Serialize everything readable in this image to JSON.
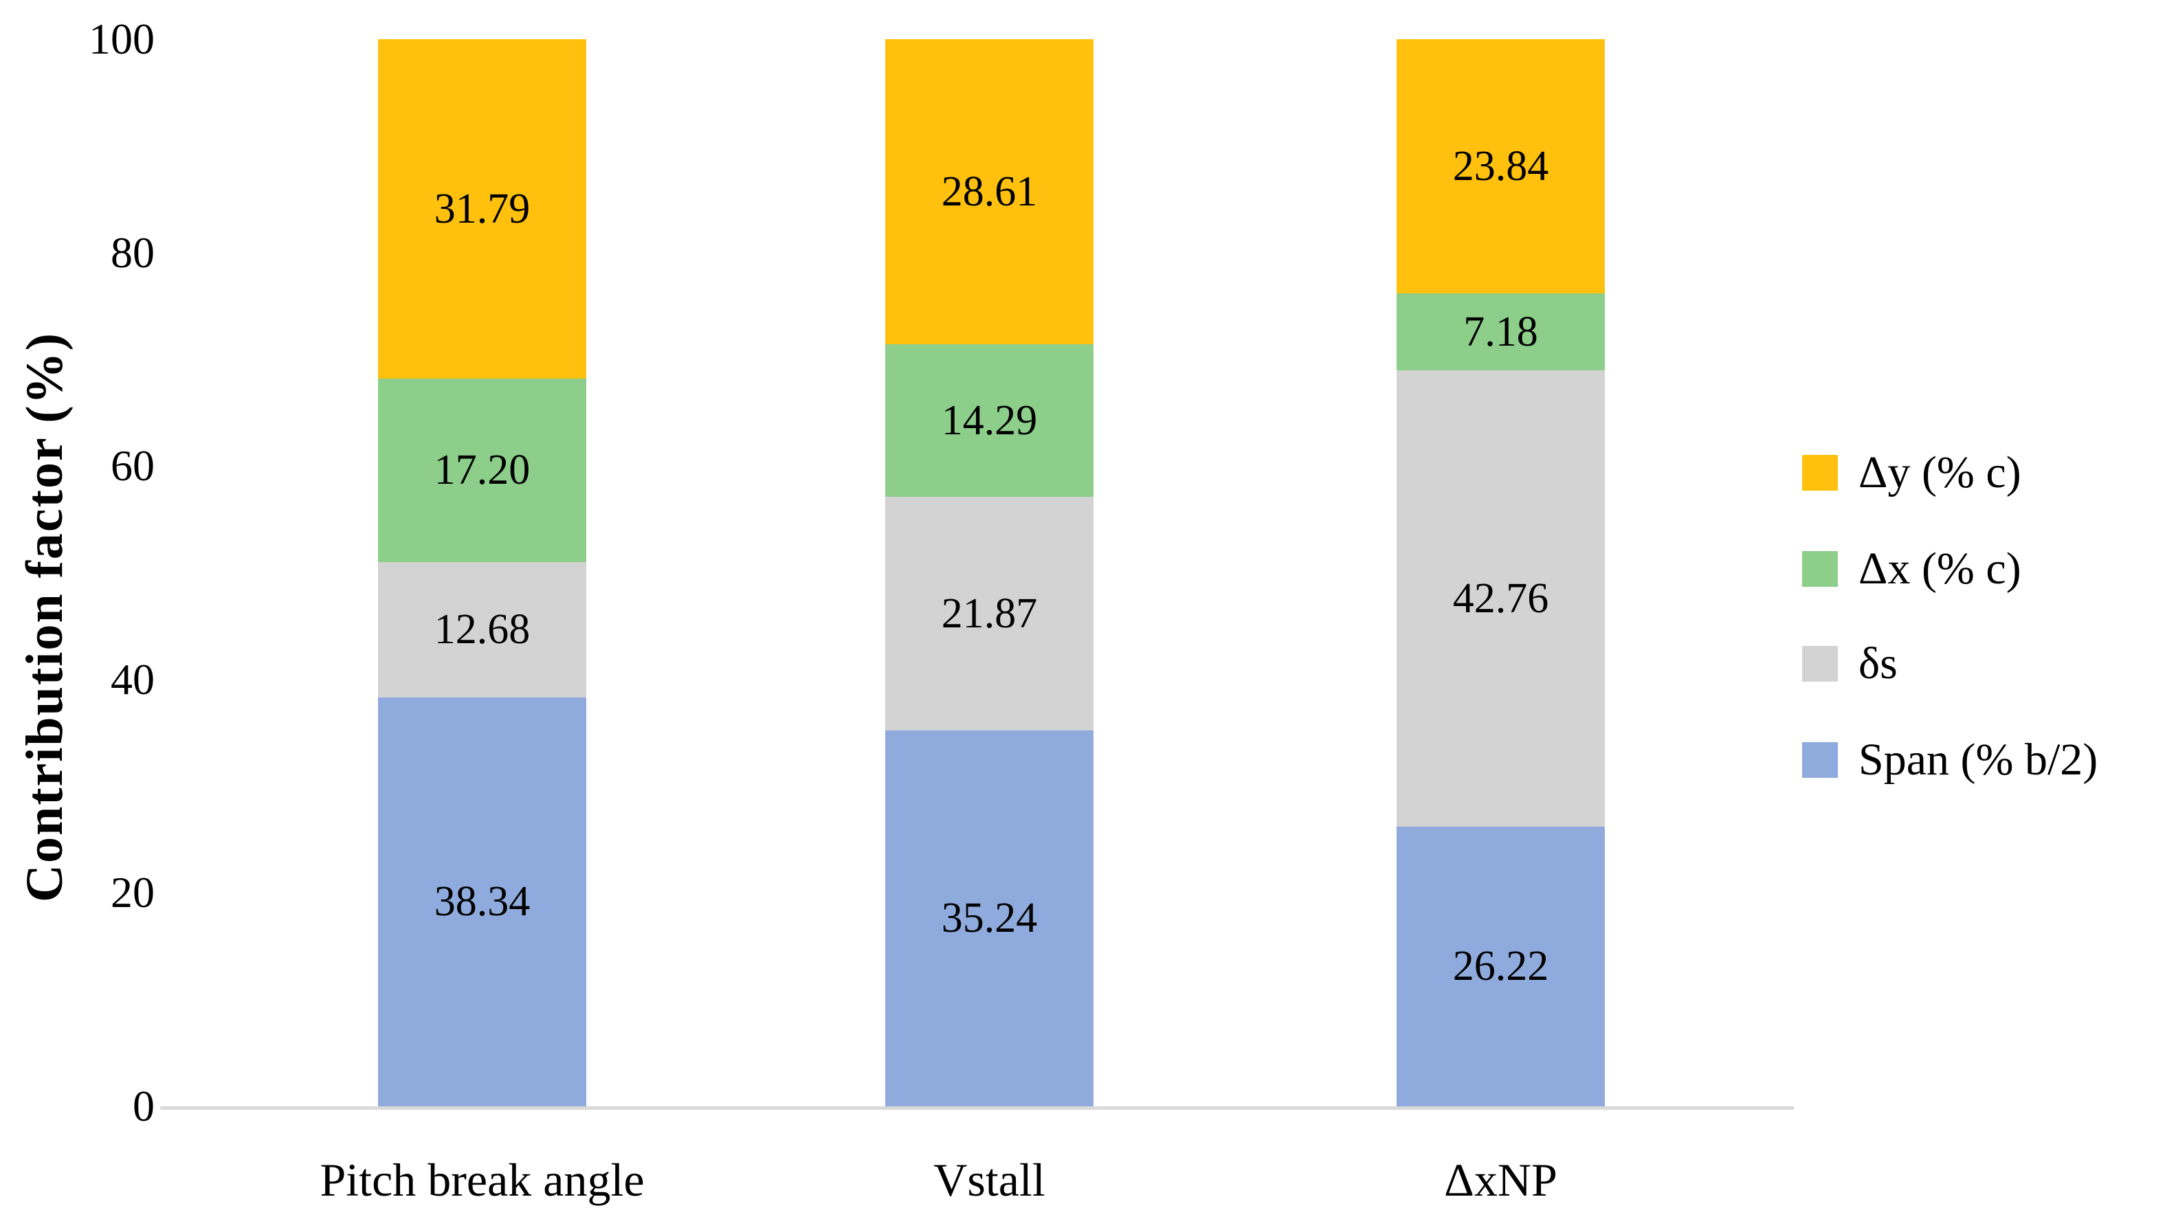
{
  "chart_data": {
    "type": "bar",
    "variant": "stacked-vertical",
    "title": "",
    "xlabel": "",
    "ylabel": "Contribution factor (%)",
    "ylim": [
      0,
      100
    ],
    "yticks": [
      0,
      20,
      40,
      60,
      80,
      100
    ],
    "categories": [
      "Pitch break angle",
      "Vstall",
      "ΔxNP"
    ],
    "series": [
      {
        "name": "Span (% b/2)",
        "color": "#8FAADC",
        "values": [
          38.34,
          35.24,
          26.22
        ]
      },
      {
        "name": "δs",
        "color": "#D3D3D3",
        "values": [
          12.68,
          21.87,
          42.76
        ]
      },
      {
        "name": "Δx (% c)",
        "color": "#8CCE8A",
        "values": [
          17.2,
          14.29,
          7.18
        ]
      },
      {
        "name": "Δy (% c)",
        "color": "#FFC10D",
        "values": [
          31.79,
          28.61,
          23.84
        ]
      }
    ],
    "stack_order": "bottom-to-top",
    "legend_position": "right",
    "legend_order_top_to_bottom": [
      "Δy (% c)",
      "Δx (% c)",
      "δs",
      "Span (% b/2)"
    ],
    "value_labels": "center-of-segment",
    "value_label_format": "two-decimals",
    "gridlines": "off",
    "axis_line_color": "#D9D9D9",
    "text_color": "#000000",
    "background_color": "#FFFFFF"
  }
}
